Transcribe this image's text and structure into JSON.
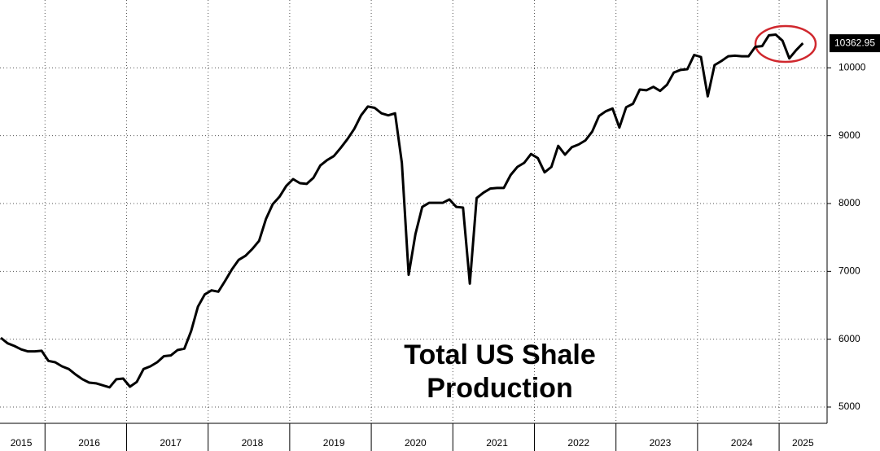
{
  "chart_data": {
    "type": "line",
    "title": "Total US Shale Production",
    "categories": [
      null,
      null,
      null,
      "2015",
      null,
      null,
      null,
      null,
      null,
      null,
      null,
      null,
      null,
      "2016",
      null,
      null,
      null,
      null,
      null,
      null,
      null,
      null,
      null,
      null,
      null,
      "2017",
      null,
      null,
      null,
      null,
      null,
      null,
      null,
      null,
      null,
      null,
      null,
      "2018",
      null,
      null,
      null,
      null,
      null,
      null,
      null,
      null,
      null,
      null,
      null,
      "2019",
      null,
      null,
      null,
      null,
      null,
      null,
      null,
      null,
      null,
      null,
      null,
      "2020",
      null,
      null,
      null,
      null,
      null,
      null,
      null,
      null,
      null,
      null,
      null,
      "2021",
      null,
      null,
      null,
      null,
      null,
      null,
      null,
      null,
      null,
      null,
      null,
      "2022",
      null,
      null,
      null,
      null,
      null,
      null,
      null,
      null,
      null,
      null,
      null,
      "2023",
      null,
      null,
      null,
      null,
      null,
      null,
      null,
      null,
      null,
      null,
      null,
      "2024",
      null,
      null,
      null,
      null,
      null,
      null,
      null,
      null,
      "2025"
    ],
    "values": [
      6020,
      5940,
      5900,
      5850,
      5820,
      5820,
      5830,
      5680,
      5660,
      5600,
      5560,
      5480,
      5410,
      5360,
      5350,
      5320,
      5290,
      5410,
      5420,
      5300,
      5370,
      5560,
      5600,
      5660,
      5750,
      5760,
      5840,
      5860,
      6120,
      6480,
      6660,
      6720,
      6700,
      6860,
      7030,
      7170,
      7230,
      7330,
      7450,
      7770,
      7990,
      8100,
      8260,
      8360,
      8300,
      8290,
      8380,
      8560,
      8640,
      8700,
      8820,
      8950,
      9100,
      9300,
      9430,
      9410,
      9330,
      9300,
      9330,
      8600,
      6950,
      7550,
      7950,
      8010,
      8010,
      8010,
      8060,
      7950,
      7940,
      6820,
      8080,
      8160,
      8220,
      8230,
      8230,
      8420,
      8540,
      8600,
      8730,
      8670,
      8460,
      8540,
      8850,
      8720,
      8830,
      8870,
      8930,
      9060,
      9290,
      9360,
      9400,
      9120,
      9420,
      9470,
      9680,
      9670,
      9720,
      9660,
      9750,
      9930,
      9970,
      9980,
      10190,
      10160,
      9580,
      10040,
      10100,
      10170,
      10180,
      10170,
      10170,
      10310,
      10320,
      10480,
      10490,
      10400,
      10140,
      10260,
      10362.95
    ],
    "color": "#000000",
    "ylim": [
      4760,
      11000
    ],
    "yticks": [
      5000,
      6000,
      7000,
      8000,
      9000,
      10000
    ],
    "grid": true
  }
}
